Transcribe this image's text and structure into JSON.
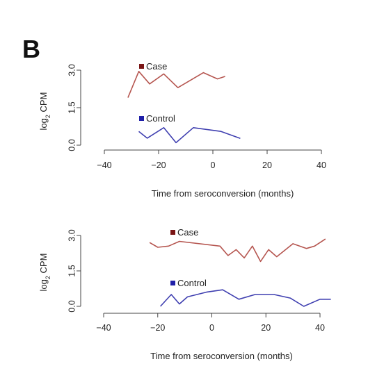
{
  "panel_label": "B",
  "colors": {
    "case": "#b5554f",
    "control": "#3f3fb0",
    "axis": "#444444",
    "case_marker": "#7a1515",
    "control_marker": "#1f1fa8"
  },
  "chart_data": [
    {
      "type": "line",
      "xlabel": "Time from seroconversion (months)",
      "ylabel_base": "log",
      "ylabel_sub": "2",
      "ylabel_rest": " CPM",
      "xlim": [
        -40,
        40
      ],
      "ylim": [
        0,
        3.0
      ],
      "xticks": [
        -40,
        -20,
        0,
        20,
        40
      ],
      "xtick_labels": [
        "−40",
        "−20",
        "0",
        "20",
        "40"
      ],
      "yticks": [
        0,
        1.5,
        3.0
      ],
      "ytick_labels": [
        "0.0",
        "1.5",
        "3.0"
      ],
      "series": [
        {
          "name": "Case",
          "color_key": "case",
          "x": [
            -31.3,
            -27.3,
            -23.3,
            -18.1,
            -12.9,
            -3.5,
            1.7,
            4.5
          ],
          "y": [
            1.9,
            2.95,
            2.45,
            2.85,
            2.3,
            2.9,
            2.65,
            2.75
          ]
        },
        {
          "name": "Control",
          "color_key": "control",
          "x": [
            -27.3,
            -24.2,
            -18.1,
            -13.6,
            -7.2,
            3.0,
            10.1
          ],
          "y": [
            0.55,
            0.28,
            0.7,
            0.1,
            0.7,
            0.55,
            0.27
          ]
        }
      ]
    },
    {
      "type": "line",
      "xlabel": "Time from seroconversion (months)",
      "ylabel_base": "log",
      "ylabel_sub": "2",
      "ylabel_rest": " CPM",
      "xlim": [
        -40,
        40
      ],
      "ylim": [
        0,
        3.0
      ],
      "xticks": [
        -40,
        -20,
        0,
        20,
        40
      ],
      "xtick_labels": [
        "−40",
        "−20",
        "0",
        "20",
        "40"
      ],
      "yticks": [
        0,
        1.5,
        3.0
      ],
      "ytick_labels": [
        "0.0",
        "1.5",
        "3.0"
      ],
      "series": [
        {
          "name": "Case",
          "color_key": "case",
          "x": [
            -23,
            -20,
            -16,
            -12,
            3,
            6,
            9,
            12,
            15,
            18,
            21,
            24,
            30,
            35,
            38,
            42
          ],
          "y": [
            2.7,
            2.5,
            2.55,
            2.75,
            2.55,
            2.15,
            2.4,
            2.05,
            2.55,
            1.9,
            2.4,
            2.1,
            2.65,
            2.45,
            2.55,
            2.85
          ]
        },
        {
          "name": "Control",
          "color_key": "control",
          "x": [
            -19,
            -15,
            -12,
            -9,
            -2,
            4,
            10,
            16,
            23,
            29,
            34,
            40,
            44
          ],
          "y": [
            0.0,
            0.5,
            0.1,
            0.4,
            0.6,
            0.7,
            0.3,
            0.5,
            0.5,
            0.35,
            0.0,
            0.3,
            0.3
          ]
        }
      ]
    }
  ]
}
